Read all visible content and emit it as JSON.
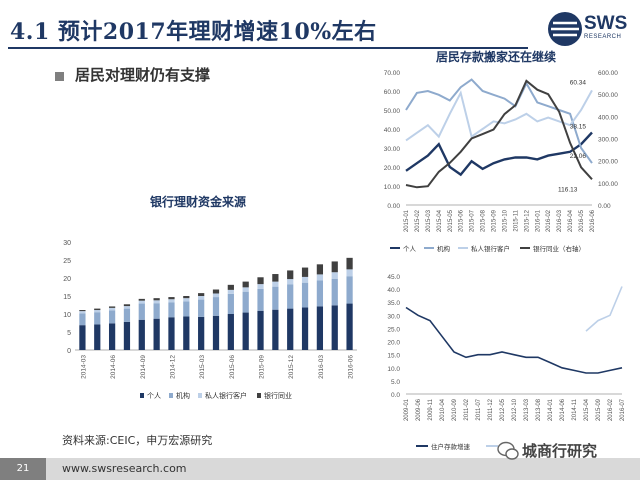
{
  "page": {
    "title": "4.1 预计2017年理财增速10%左右",
    "bullet": "居民对理财仍有支撑",
    "source": "资料来源:CEIC，申万宏源研究",
    "page_number": "21",
    "footer_url": "www.swsresearch.com",
    "logo_text": "SWS",
    "logo_sub": "RESEARCH",
    "watermark": "城商行研究",
    "colors": {
      "navy": "#1f3864",
      "mid": "#8eaacd",
      "light": "#bdd0e8",
      "dark": "#404040"
    }
  },
  "chart_data": [
    {
      "id": "bar",
      "type": "bar",
      "title": "银行理财资金来源",
      "ylim": [
        0,
        30
      ],
      "yticks": [
        "0",
        "5",
        "10",
        "15",
        "20",
        "25",
        "30"
      ],
      "categories": [
        "2014-03",
        "",
        "2014-06",
        "",
        "2014-09",
        "",
        "2014-12",
        "",
        "2015-03",
        "",
        "2015-06",
        "",
        "2015-09",
        "",
        "2015-12",
        "",
        "2016-03",
        "",
        "2016-06"
      ],
      "series": [
        {
          "name": "个人",
          "color": "#1f3864",
          "values": [
            6.9,
            7.1,
            7.4,
            7.8,
            8.4,
            8.7,
            9.1,
            9.3,
            9.2,
            9.5,
            10.0,
            10.4,
            10.9,
            11.2,
            11.5,
            11.8,
            12.1,
            12.4,
            12.9
          ]
        },
        {
          "name": "机构",
          "color": "#8eaacd",
          "values": [
            3.3,
            3.4,
            3.6,
            3.7,
            4.5,
            4.3,
            4.1,
            4.2,
            4.8,
            5.2,
            5.6,
            5.8,
            6.1,
            6.4,
            6.7,
            6.9,
            7.2,
            7.4,
            7.6
          ]
        },
        {
          "name": "私人银行客户",
          "color": "#bdd0e8",
          "values": [
            0.6,
            0.6,
            0.7,
            0.7,
            0.8,
            0.8,
            0.9,
            0.9,
            1.0,
            1.0,
            1.1,
            1.2,
            1.3,
            1.4,
            1.5,
            1.6,
            1.7,
            1.8,
            1.9
          ]
        },
        {
          "name": "银行同业",
          "color": "#404040",
          "values": [
            0.3,
            0.4,
            0.4,
            0.5,
            0.5,
            0.6,
            0.6,
            0.6,
            0.8,
            1.1,
            1.4,
            1.6,
            1.9,
            2.1,
            2.4,
            2.6,
            2.8,
            3.0,
            3.2
          ]
        }
      ],
      "legend_position": "bottom"
    },
    {
      "id": "line1",
      "type": "line",
      "title": "居民存款搬家还在继续",
      "ylim": [
        0,
        70
      ],
      "y2lim": [
        0,
        600
      ],
      "yticks": [
        "0.00",
        "10.00",
        "20.00",
        "30.00",
        "40.00",
        "50.00",
        "60.00",
        "70.00"
      ],
      "y2ticks": [
        "0.00",
        "100.00",
        "200.00",
        "300.00",
        "400.00",
        "500.00",
        "600.00"
      ],
      "x": [
        "2015-01",
        "2015-02",
        "2015-03",
        "2015-04",
        "2015-05",
        "2015-06",
        "2015-07",
        "2015-08",
        "2015-09",
        "2015-10",
        "2015-11",
        "2015-12",
        "2016-01",
        "2016-02",
        "2016-03",
        "2016-04",
        "2016-05",
        "2016-06"
      ],
      "series": [
        {
          "name": "个人",
          "color": "#1f3864",
          "axis": "left",
          "values": [
            18,
            22,
            26,
            32,
            20,
            16,
            23,
            19,
            22,
            24,
            25,
            25,
            24,
            26,
            27,
            28,
            32,
            38.15
          ]
        },
        {
          "name": "机构",
          "color": "#8eaacd",
          "axis": "left",
          "values": [
            50,
            59,
            60,
            58,
            55,
            62,
            66,
            60,
            58,
            56,
            52,
            64,
            54,
            52,
            50,
            48,
            30,
            22.06
          ]
        },
        {
          "name": "私人银行客户",
          "color": "#bdd0e8",
          "axis": "left",
          "values": [
            34,
            38,
            42,
            36,
            48,
            59,
            36,
            40,
            44,
            43,
            45,
            48,
            44,
            46,
            44,
            42,
            50,
            60.34
          ]
        },
        {
          "name": "银行同业（右轴）",
          "color": "#404040",
          "axis": "right",
          "values": [
            90,
            80,
            85,
            150,
            190,
            240,
            300,
            320,
            340,
            410,
            450,
            560,
            520,
            500,
            420,
            280,
            170,
            116.13
          ]
        }
      ],
      "annotations": [
        "60.34",
        "38.15",
        "22.06",
        "116.13"
      ],
      "legend_position": "bottom"
    },
    {
      "id": "line2",
      "type": "line",
      "title": "",
      "ylim": [
        0,
        45
      ],
      "yticks": [
        "0.0",
        "5.0",
        "10.0",
        "15.0",
        "20.0",
        "25.0",
        "30.0",
        "35.0",
        "40.0",
        "45.0"
      ],
      "x": [
        "2009-01",
        "2009-06",
        "2009-11",
        "2010-04",
        "2010-09",
        "2011-02",
        "2011-07",
        "2011-12",
        "2012-05",
        "2012-10",
        "2013-03",
        "2013-08",
        "2014-01",
        "2014-06",
        "2014-11",
        "2015-04",
        "2015-09",
        "2016-02",
        "2016-07"
      ],
      "series": [
        {
          "name": "住户存款增速",
          "color": "#1f3864",
          "values": [
            33,
            30,
            28,
            22,
            16,
            14,
            15,
            15,
            16,
            15,
            14,
            14,
            12,
            10,
            9,
            8,
            8,
            9,
            10
          ]
        },
        {
          "name": "",
          "color": "#bdd0e8",
          "values": [
            null,
            null,
            null,
            null,
            null,
            null,
            null,
            null,
            null,
            null,
            null,
            null,
            null,
            null,
            null,
            24,
            28,
            30,
            41
          ]
        }
      ],
      "legend_position": "bottom"
    }
  ]
}
